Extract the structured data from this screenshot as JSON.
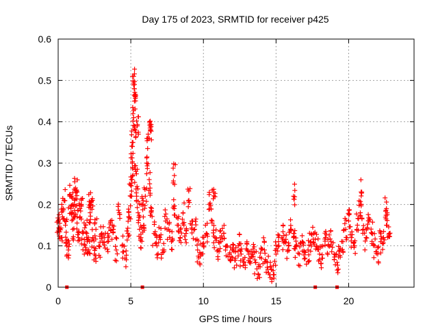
{
  "chart_data": {
    "type": "scatter",
    "title": "Day 175 of 2023, SRMTID for receiver p425",
    "xlabel": "GPS time / hours",
    "ylabel": "SRMTID / TECUs",
    "xlim": [
      0,
      24.5
    ],
    "ylim": [
      0,
      0.6
    ],
    "xticks": [
      0,
      5,
      10,
      15,
      20
    ],
    "yticks": [
      0,
      0.1,
      0.2,
      0.3,
      0.4,
      0.5,
      0.6
    ],
    "grid": true,
    "marker": "+",
    "color": "#ff0000",
    "series": [
      {
        "name": "SRMTID",
        "x": [
          0.0,
          0.1,
          0.2,
          0.3,
          0.4,
          0.5,
          0.6,
          0.7,
          0.8,
          0.9,
          1.0,
          1.1,
          1.2,
          1.3,
          1.4,
          1.5,
          1.6,
          1.7,
          1.8,
          1.9,
          2.0,
          2.1,
          2.2,
          2.3,
          2.4,
          2.5,
          2.6,
          2.8,
          3.0,
          3.2,
          3.4,
          3.6,
          3.8,
          4.0,
          4.2,
          4.4,
          4.6,
          4.8,
          4.9,
          5.0,
          5.05,
          5.1,
          5.15,
          5.2,
          5.25,
          5.3,
          5.35,
          5.4,
          5.5,
          5.6,
          5.7,
          5.8,
          5.9,
          6.0,
          6.1,
          6.2,
          6.3,
          6.4,
          6.6,
          6.8,
          7.0,
          7.2,
          7.4,
          7.6,
          7.8,
          8.0,
          8.2,
          8.4,
          8.6,
          8.8,
          9.0,
          9.2,
          9.4,
          9.6,
          9.8,
          10.0,
          10.2,
          10.4,
          10.6,
          10.8,
          11.0,
          11.2,
          11.4,
          11.6,
          11.8,
          12.0,
          12.2,
          12.4,
          12.6,
          12.8,
          13.0,
          13.2,
          13.4,
          13.6,
          13.8,
          14.0,
          14.2,
          14.4,
          14.6,
          14.8,
          15.0,
          15.2,
          15.4,
          15.6,
          15.8,
          16.0,
          16.2,
          16.4,
          16.6,
          16.8,
          17.0,
          17.2,
          17.4,
          17.6,
          17.8,
          18.0,
          18.2,
          18.4,
          18.6,
          18.8,
          19.0,
          19.2,
          19.4,
          19.6,
          19.8,
          20.0,
          20.2,
          20.4,
          20.6,
          20.8,
          21.0,
          21.2,
          21.4,
          21.6,
          21.8,
          22.0,
          22.2,
          22.4,
          22.6,
          22.8,
          1.0,
          1.3,
          2.2,
          5.2,
          5.25,
          5.45,
          6.3,
          6.35,
          8.0,
          10.7,
          16.2,
          20.9,
          22.6
        ],
        "y": [
          0.16,
          0.14,
          0.12,
          0.17,
          0.21,
          0.15,
          0.1,
          0.09,
          0.22,
          0.18,
          0.14,
          0.2,
          0.24,
          0.17,
          0.12,
          0.19,
          0.2,
          0.13,
          0.08,
          0.15,
          0.11,
          0.09,
          0.18,
          0.21,
          0.12,
          0.08,
          0.14,
          0.1,
          0.13,
          0.12,
          0.11,
          0.16,
          0.14,
          0.09,
          0.18,
          0.1,
          0.07,
          0.13,
          0.17,
          0.22,
          0.26,
          0.3,
          0.35,
          0.41,
          0.45,
          0.38,
          0.28,
          0.22,
          0.18,
          0.14,
          0.12,
          0.2,
          0.15,
          0.22,
          0.3,
          0.36,
          0.25,
          0.18,
          0.13,
          0.1,
          0.12,
          0.09,
          0.16,
          0.14,
          0.11,
          0.19,
          0.15,
          0.12,
          0.18,
          0.13,
          0.21,
          0.16,
          0.14,
          0.09,
          0.08,
          0.1,
          0.13,
          0.2,
          0.16,
          0.12,
          0.09,
          0.11,
          0.13,
          0.1,
          0.08,
          0.09,
          0.07,
          0.1,
          0.08,
          0.06,
          0.09,
          0.07,
          0.08,
          0.06,
          0.05,
          0.07,
          0.09,
          0.06,
          0.05,
          0.04,
          0.08,
          0.1,
          0.12,
          0.11,
          0.09,
          0.14,
          0.12,
          0.1,
          0.08,
          0.11,
          0.07,
          0.09,
          0.11,
          0.13,
          0.1,
          0.08,
          0.07,
          0.12,
          0.1,
          0.11,
          0.08,
          0.06,
          0.09,
          0.11,
          0.14,
          0.16,
          0.12,
          0.1,
          0.15,
          0.18,
          0.14,
          0.12,
          0.16,
          0.13,
          0.1,
          0.08,
          0.11,
          0.12,
          0.15,
          0.13,
          0.2,
          0.23,
          0.2,
          0.51,
          0.49,
          0.39,
          0.4,
          0.38,
          0.27,
          0.23,
          0.22,
          0.23,
          0.19
        ],
        "markers_y0_x": [
          0.6,
          5.8,
          17.7,
          19.2
        ]
      }
    ]
  }
}
